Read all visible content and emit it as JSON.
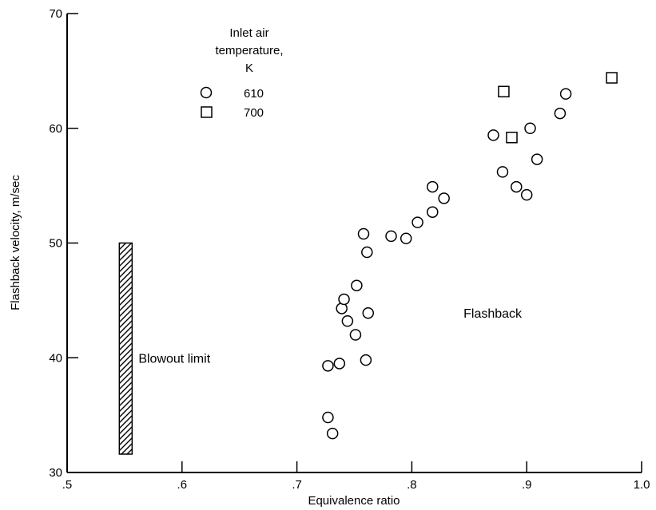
{
  "chart_data": {
    "type": "scatter",
    "title": "",
    "xlabel": "Equivalence ratio",
    "ylabel": "Flashback velocity, m/sec",
    "xlim": [
      0.5,
      1.0
    ],
    "ylim": [
      30,
      70
    ],
    "x_ticks": [
      0.5,
      0.6,
      0.7,
      0.8,
      0.9,
      1.0
    ],
    "x_tick_labels": [
      ".5",
      ".6",
      ".7",
      ".8",
      ".9",
      "1.0"
    ],
    "y_ticks": [
      30,
      40,
      50,
      60,
      70
    ],
    "y_tick_labels": [
      "30",
      "40",
      "50",
      "60",
      "70"
    ],
    "grid": false,
    "legend": {
      "title_lines": [
        "Inlet air",
        "temperature,",
        "K"
      ],
      "placement": "top-left"
    },
    "series": [
      {
        "name": "610",
        "marker": "circle",
        "points": [
          [
            0.727,
            34.8
          ],
          [
            0.731,
            33.4
          ],
          [
            0.727,
            39.3
          ],
          [
            0.737,
            39.5
          ],
          [
            0.739,
            44.3
          ],
          [
            0.741,
            45.1
          ],
          [
            0.744,
            43.2
          ],
          [
            0.751,
            42.0
          ],
          [
            0.752,
            46.3
          ],
          [
            0.758,
            50.8
          ],
          [
            0.76,
            39.8
          ],
          [
            0.761,
            49.2
          ],
          [
            0.762,
            43.9
          ],
          [
            0.782,
            50.6
          ],
          [
            0.795,
            50.4
          ],
          [
            0.805,
            51.8
          ],
          [
            0.818,
            52.7
          ],
          [
            0.818,
            54.9
          ],
          [
            0.828,
            53.9
          ],
          [
            0.871,
            59.4
          ],
          [
            0.879,
            56.2
          ],
          [
            0.891,
            54.9
          ],
          [
            0.9,
            54.2
          ],
          [
            0.903,
            60.0
          ],
          [
            0.909,
            57.3
          ],
          [
            0.929,
            61.3
          ],
          [
            0.934,
            63.0
          ]
        ]
      },
      {
        "name": "700",
        "marker": "square",
        "points": [
          [
            0.88,
            63.2
          ],
          [
            0.887,
            59.2
          ],
          [
            0.974,
            64.4
          ]
        ]
      }
    ],
    "annotations": [
      {
        "text": "Blowout limit",
        "x": 0.551,
        "y_range": [
          31.6,
          50.0
        ]
      },
      {
        "text": "Flashback",
        "x": 0.845,
        "y": 43.9
      }
    ]
  }
}
